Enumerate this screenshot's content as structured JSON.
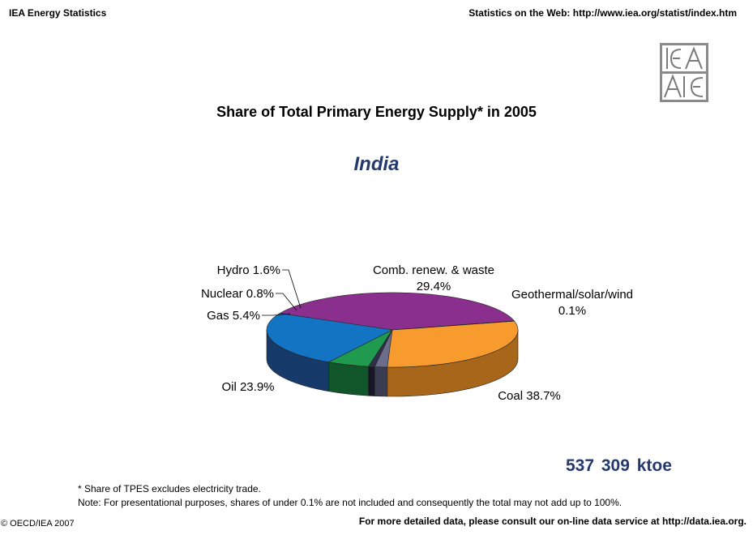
{
  "header": {
    "left": "IEA Energy Statistics",
    "right": "Statistics on the Web: http://www.iea.org/statist/index.htm"
  },
  "logo": {
    "top_text": "IEA",
    "bottom_text": "AIE"
  },
  "chart_data": {
    "type": "pie",
    "title": "Share of Total Primary Energy Supply* in 2005",
    "subtitle": "India",
    "slices": [
      {
        "label": "Coal",
        "value": 38.7,
        "display": "Coal 38.7%",
        "color": "#8b2f8f",
        "side": "#4b1850"
      },
      {
        "label": "Oil",
        "value": 23.9,
        "display": "Oil 23.9%",
        "color": "#1474c4",
        "side": "#163a6a"
      },
      {
        "label": "Gas",
        "value": 5.4,
        "display": "Gas 5.4%",
        "color": "#1f9a4e",
        "side": "#10562a"
      },
      {
        "label": "Nuclear",
        "value": 0.8,
        "display": "Nuclear 0.8%",
        "color": "#2f2f4a",
        "side": "#161626"
      },
      {
        "label": "Hydro",
        "value": 1.6,
        "display": "Hydro 1.6%",
        "color": "#6a6e8a",
        "side": "#3a3d52"
      },
      {
        "label": "Comb. renew. & waste",
        "value": 29.4,
        "display_line1": "Comb. renew. & waste",
        "display_line2": "29.4%",
        "color": "#f79b2f",
        "side": "#a8661b"
      },
      {
        "label": "Geothermal/solar/wind",
        "value": 0.1,
        "display_line1": "Geothermal/solar/wind",
        "display_line2": "0.1%",
        "color": "#e8c040",
        "side": "#9a7e22"
      }
    ]
  },
  "total": "537 309  ktoe",
  "notes": {
    "line1": "* Share of TPES excludes electricity trade.",
    "line2": "Note: For presentational purposes, shares of under 0.1% are not included and consequently the total may not add up to 100%."
  },
  "footer": {
    "left": "© OECD/IEA 2007",
    "right": "For more detailed data, please consult our on-line data service at http://data.iea.org."
  }
}
